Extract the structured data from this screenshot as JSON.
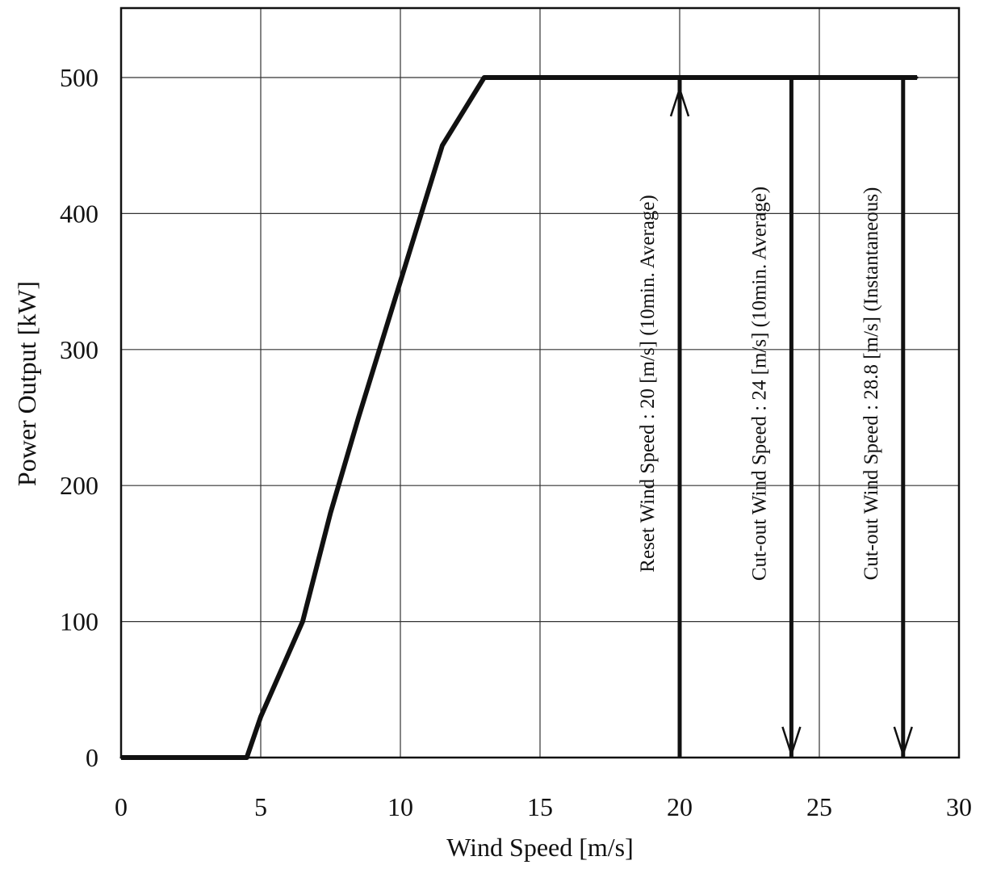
{
  "chart_data": {
    "type": "line",
    "xlabel": "Wind Speed [m/s]",
    "ylabel": "Power Output [kW]",
    "xlim": [
      0,
      30
    ],
    "ylim": [
      0,
      550
    ],
    "x_ticks": [
      "0",
      "5",
      "10",
      "15",
      "20",
      "25",
      "30"
    ],
    "y_ticks": [
      "0",
      "100",
      "200",
      "300",
      "400",
      "500"
    ],
    "grid": true,
    "series": [
      {
        "x": [
          0,
          4.5,
          5,
          6.5,
          7.5,
          8.5,
          10,
          11.5,
          13,
          28.5
        ],
        "y": [
          0,
          0,
          30,
          100,
          180,
          250,
          350,
          450,
          500,
          500
        ]
      }
    ],
    "annotations": [
      {
        "x": 20,
        "text": "Reset Wind Speed : 20 [m/s] (10min. Average)",
        "arrow": "up"
      },
      {
        "x": 24,
        "text": "Cut-out Wind Speed : 24 [m/s] (10min. Average)",
        "arrow": "down"
      },
      {
        "x": 28,
        "text": "Cut-out Wind Speed : 28.8 [m/s] (Instantaneous)",
        "arrow": "down"
      }
    ]
  }
}
